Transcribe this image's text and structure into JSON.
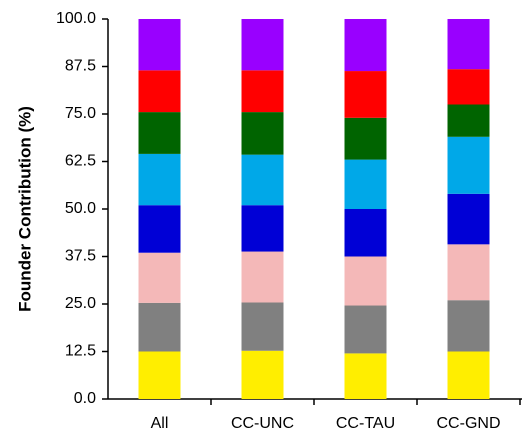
{
  "chart_data": {
    "type": "stacked-bar",
    "y_label": "Founder Contribution (%)",
    "categories": [
      "All",
      "CC-UNC",
      "CC-TAU",
      "CC-GND"
    ],
    "series": [
      {
        "color": "#ffee00",
        "values": [
          12.5,
          12.7,
          12,
          12.5
        ]
      },
      {
        "color": "#808080",
        "values": [
          12.8,
          12.7,
          12.6,
          13.5
        ]
      },
      {
        "color": "#f4b8b8",
        "values": [
          13.2,
          13.4,
          12.9,
          14.7
        ]
      },
      {
        "color": "#0000d6",
        "values": [
          12.5,
          12.2,
          12.5,
          13.3
        ]
      },
      {
        "color": "#00a8e8",
        "values": [
          13.5,
          13.3,
          13,
          15
        ]
      },
      {
        "color": "#006400",
        "values": [
          11,
          11.2,
          11,
          8.5
        ]
      },
      {
        "color": "#ff0000",
        "values": [
          11,
          11,
          12.3,
          9.3
        ]
      },
      {
        "color": "#9900ff",
        "values": [
          13.5,
          13.5,
          13.7,
          13.2
        ]
      }
    ],
    "ylim": [
      0,
      100
    ],
    "yticks": [
      {
        "value": 0,
        "label": "0.0"
      },
      12.5,
      {
        "value": 25,
        "label": "25.0"
      },
      37.5,
      {
        "value": 50,
        "label": "50.0"
      },
      62.5,
      {
        "value": 75,
        "label": "75.0"
      },
      87.5,
      {
        "value": 100,
        "label": "100.0"
      }
    ]
  }
}
